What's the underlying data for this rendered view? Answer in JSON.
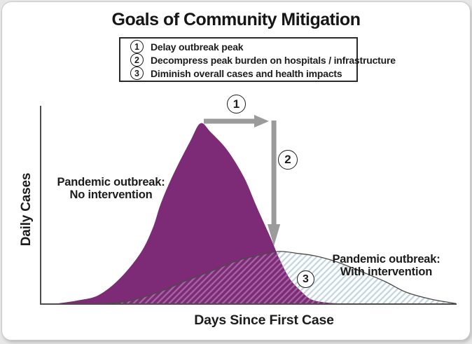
{
  "title": "Goals of Community Mitigation",
  "legend": {
    "items": [
      {
        "num": "1",
        "label": "Delay outbreak peak"
      },
      {
        "num": "2",
        "label": "Decompress peak burden on hospitals / infrastructure"
      },
      {
        "num": "3",
        "label": "Diminish overall cases and health impacts"
      }
    ]
  },
  "annotations": {
    "marker1": "1",
    "marker2": "2",
    "marker3": "3",
    "no_intervention": {
      "line1": "Pandemic outbreak:",
      "line2": "No intervention"
    },
    "with_intervention": {
      "line1": "Pandemic outbreak:",
      "line2": "With intervention"
    }
  },
  "axes": {
    "x_label": "Days Since First Case",
    "y_label": "Daily Cases",
    "ticks": "none shown"
  },
  "colors": {
    "no_intervention_fill": "#7D2B76",
    "overlap_hatch_stripe": "#A765A3",
    "with_intervention_hatch_stripe": "#C2D4DE",
    "with_intervention_outline": "#4A4A4A",
    "arrow": "#9B9B9B",
    "axis": "#4D4D4D",
    "text": "#1C1C1C"
  },
  "chart_data": {
    "type": "area",
    "title": "Goals of Community Mitigation",
    "xlabel": "Days Since First Case",
    "ylabel": "Daily Cases",
    "x_range": [
      0,
      100
    ],
    "y_range": [
      0,
      1.05
    ],
    "grid": false,
    "legend_position": "labels beside curves",
    "note": "Axes are unlabeled/relative; values estimated with no-intervention peak normalized to 1.0 at ~day 38, with-intervention peak ~0.29 at ~day 57",
    "series": [
      {
        "name": "Pandemic outbreak: No intervention",
        "style": "solid purple filled bell curve",
        "points": [
          [
            3,
            0
          ],
          [
            9,
            0.02
          ],
          [
            14,
            0.05
          ],
          [
            19,
            0.14
          ],
          [
            24,
            0.28
          ],
          [
            27,
            0.42
          ],
          [
            29,
            0.56
          ],
          [
            32,
            0.72
          ],
          [
            36,
            0.9
          ],
          [
            38.5,
            1.0
          ],
          [
            41,
            0.95
          ],
          [
            45,
            0.85
          ],
          [
            49,
            0.7
          ],
          [
            52,
            0.54
          ],
          [
            55.5,
            0.36
          ],
          [
            57.5,
            0.25
          ],
          [
            60,
            0.14
          ],
          [
            63,
            0.065
          ],
          [
            65.5,
            0.023
          ],
          [
            70,
            0.006
          ],
          [
            76,
            0
          ]
        ]
      },
      {
        "name": "Pandemic outbreak: With intervention",
        "style": "flattened bell, light-blue diagonal hatch fill, thin dark outline",
        "points": [
          [
            15,
            0
          ],
          [
            20,
            0.012
          ],
          [
            25,
            0.04
          ],
          [
            30,
            0.08
          ],
          [
            34,
            0.12
          ],
          [
            38,
            0.155
          ],
          [
            43,
            0.2
          ],
          [
            48,
            0.245
          ],
          [
            53,
            0.272
          ],
          [
            57.5,
            0.291
          ],
          [
            62,
            0.28
          ],
          [
            66,
            0.267
          ],
          [
            71,
            0.236
          ],
          [
            77,
            0.182
          ],
          [
            83,
            0.124
          ],
          [
            88,
            0.066
          ],
          [
            94,
            0.027
          ],
          [
            100,
            0.003
          ]
        ]
      }
    ],
    "annotations": [
      {
        "num": "1",
        "meaning": "Delay outbreak peak",
        "shape": "horizontal gray arrow from no-intervention peak pointing right"
      },
      {
        "num": "2",
        "meaning": "Decompress peak burden on hospitals / infrastructure",
        "shape": "vertical gray arrow pointing down to with-intervention peak"
      },
      {
        "num": "3",
        "meaning": "Diminish overall cases and health impacts",
        "shape": "circled 3 inside hatched area"
      }
    ]
  }
}
